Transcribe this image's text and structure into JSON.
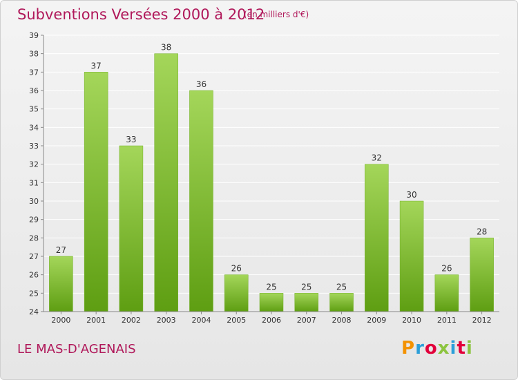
{
  "header": {
    "title": "Subventions Versées 2000 à 2012",
    "subtitle": "(en milliers d'€)"
  },
  "footer": {
    "place": "LE MAS-D'AGENAIS",
    "logo": "Proxiti",
    "logo_colors": [
      "#f39200",
      "#2b9fd9",
      "#e2003b",
      "#8cc43f",
      "#2b9fd9",
      "#e2003b",
      "#8cc43f"
    ]
  },
  "chart_data": {
    "type": "bar",
    "categories": [
      "2000",
      "2001",
      "2002",
      "2003",
      "2004",
      "2005",
      "2006",
      "2007",
      "2008",
      "2009",
      "2010",
      "2011",
      "2012"
    ],
    "values": [
      27,
      37,
      33,
      38,
      36,
      26,
      25,
      25,
      25,
      32,
      30,
      26,
      28
    ],
    "ylim": [
      24,
      39
    ],
    "yticks": [
      24,
      25,
      26,
      27,
      28,
      29,
      30,
      31,
      32,
      33,
      34,
      35,
      36,
      37,
      38,
      39
    ],
    "grid": true,
    "colors": {
      "bar_top": "#a4d65a",
      "bar_bottom": "#5e9e12",
      "grid": "#ffffff",
      "axis": "#888888"
    }
  }
}
